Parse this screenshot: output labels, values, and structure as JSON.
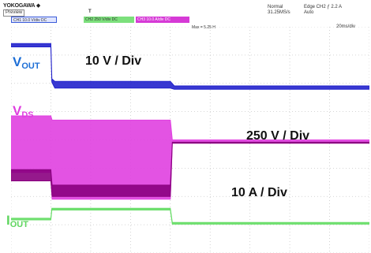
{
  "header": {
    "brand": "YOKOGAWA ◆",
    "mode_label": "Preview",
    "trigger_marker": "T",
    "acq_mode": "Normal",
    "sample_rate": "31.25MS/s",
    "trigger_setting": "Edge CH2 ƒ 2.2 A",
    "trigger_mode": "Auto",
    "time_div": "20ms/div",
    "cursor_readout": "Max = 5.25 H",
    "channels": [
      {
        "label": "CH1 10.0 V/div DC",
        "color": "#3a5bd9"
      },
      {
        "label": "CH2 250 V/div DC",
        "color": "#7ce07c"
      },
      {
        "label": "CH3 10.0 A/div DC",
        "color": "#d63ad6"
      }
    ]
  },
  "annotations": {
    "vout_scale": "10 V / Div",
    "vds_scale": "250 V / Div",
    "iout_scale": "10 A / Div",
    "vout_main": "V",
    "vout_sub": "OUT",
    "vds_main": "V",
    "vds_sub": "DS",
    "iout_main": "I",
    "iout_sub": "OUT"
  },
  "chart_data": {
    "type": "line",
    "title": "",
    "xlabel": "",
    "ylabel": "",
    "x_unit": "ms",
    "xlim": [
      -20,
      160
    ],
    "grid": true,
    "grid_divisions": {
      "x": 9,
      "y": 8
    },
    "y_div_range": [
      0,
      8
    ],
    "series": [
      {
        "name": "V_OUT",
        "color": "#2222cc",
        "x": [
          -20,
          0,
          0.5,
          2,
          60,
          62,
          160
        ],
        "y": [
          7.35,
          7.35,
          6.1,
          5.95,
          5.95,
          5.85,
          5.85
        ],
        "band": [
          0.06,
          0.06,
          0.06,
          0.12,
          0.12,
          0.06,
          0.06
        ]
      },
      {
        "name": "V_DS",
        "color": "#e040e0",
        "x": [
          -20,
          0,
          0.6,
          60,
          61,
          160
        ],
        "y": [
          3.85,
          3.85,
          3.3,
          3.3,
          3.95,
          3.95
        ],
        "band": [
          1.0,
          1.0,
          1.4,
          1.4,
          0.05,
          0.05
        ]
      },
      {
        "name": "V_DS_edge",
        "color": "#8a0080",
        "x": [
          -20,
          0,
          0.6,
          60,
          61,
          160
        ],
        "y": [
          2.75,
          2.75,
          2.2,
          2.2,
          3.9,
          3.9
        ],
        "band": [
          0.2,
          0.2,
          0.2,
          0.2,
          0.02,
          0.02
        ]
      },
      {
        "name": "I_OUT",
        "color": "#66dd66",
        "x": [
          -20,
          0,
          0.5,
          60,
          61,
          160
        ],
        "y": [
          1.2,
          1.2,
          1.55,
          1.55,
          1.05,
          1.05
        ],
        "band": [
          0.03,
          0.03,
          0.03,
          0.03,
          0.03,
          0.03
        ]
      }
    ]
  }
}
